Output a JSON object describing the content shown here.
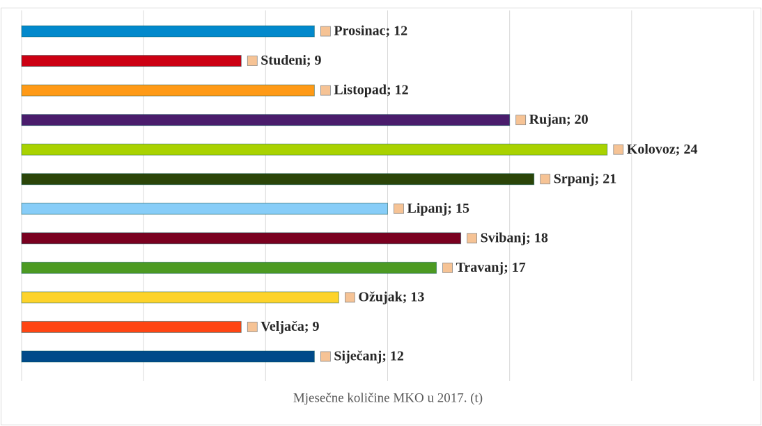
{
  "chart_data": {
    "type": "bar",
    "orientation": "horizontal",
    "title": "Mjesečne količine MKO u 2017. (t)",
    "categories": [
      "Siječanj",
      "Veljača",
      "Ožujak",
      "Travanj",
      "Svibanj",
      "Lipanj",
      "Srpanj",
      "Kolovoz",
      "Rujan",
      "Listopad",
      "Studeni",
      "Prosinac"
    ],
    "values": [
      12,
      9,
      13,
      17,
      18,
      15,
      21,
      24,
      20,
      12,
      9,
      12
    ],
    "value_labels": [
      "Siječanj; 12",
      "Veljača; 9",
      "Ožujak; 13",
      "Travanj; 17",
      "Svibanj; 18",
      "Lipanj; 15",
      "Srpanj; 21",
      "Kolovoz; 24",
      "Rujan; 20",
      "Listopad; 12",
      "Studeni; 9",
      "Prosinac; 12"
    ],
    "colors": [
      "#004a8a",
      "#ff4513",
      "#fdd32a",
      "#4c9a22",
      "#7a0020",
      "#87cdf8",
      "#2b4508",
      "#a9d200",
      "#4a1c6c",
      "#ff9a16",
      "#cc0013",
      "#0289cc"
    ],
    "label_marker_color": "#f6c395",
    "xlim": [
      0,
      30
    ],
    "xticks": [
      0,
      5,
      10,
      15,
      20,
      25,
      30
    ],
    "grid": true
  }
}
